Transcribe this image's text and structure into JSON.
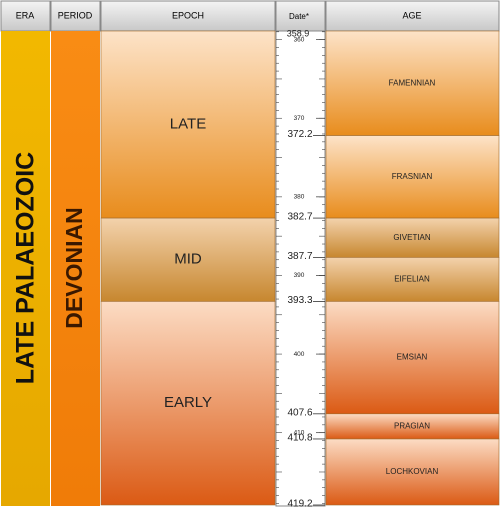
{
  "header": {
    "era": "ERA",
    "period": "PERIOD",
    "epoch": "EPOCH",
    "date": "Date*",
    "age": "AGE"
  },
  "era": "LATE PALAEOZOIC",
  "period": "DEVONIAN",
  "scale": {
    "top": 358.9,
    "ticks": [
      360,
      370,
      380,
      390,
      400,
      410
    ]
  },
  "epochs": [
    {
      "name": "LATE",
      "base": 382.7
    },
    {
      "name": "MID",
      "base": 393.3
    },
    {
      "name": "EARLY",
      "base": 419.2
    }
  ],
  "ages": [
    {
      "name": "FAMENNIAN",
      "base": 372.2
    },
    {
      "name": "FRASNIAN",
      "base": 382.7
    },
    {
      "name": "GIVETIAN",
      "base": 387.7
    },
    {
      "name": "EIFELIAN",
      "base": 393.3
    },
    {
      "name": "EMSIAN",
      "base": 407.6
    },
    {
      "name": "PRAGIAN",
      "base": 410.8
    },
    {
      "name": "LOCHKOVIAN",
      "base": 419.2
    }
  ]
}
